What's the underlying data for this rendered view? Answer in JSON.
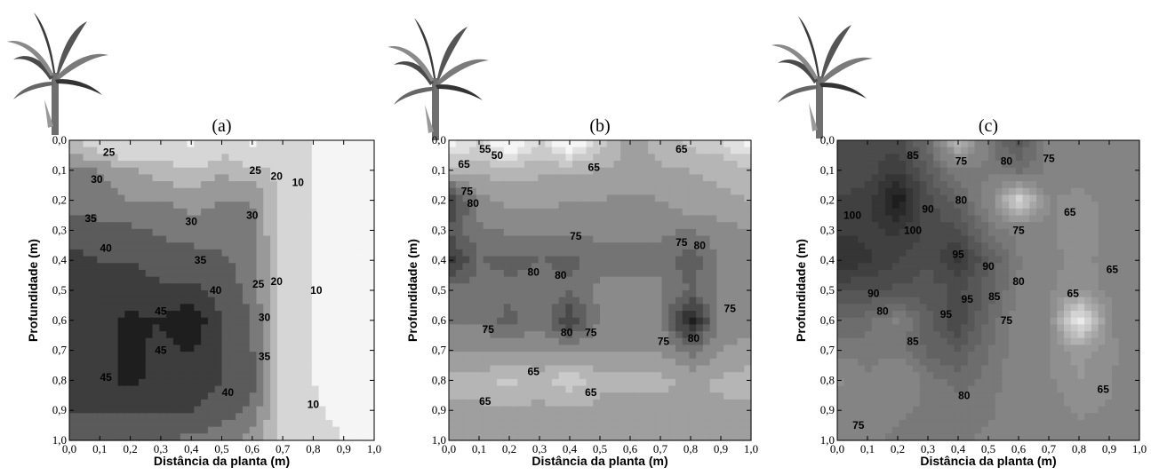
{
  "chart_data": [
    {
      "type": "contour",
      "panel_label": "(a)",
      "xlabel": "Distância da planta (m)",
      "ylabel": "Profundidade (m)",
      "x_ticks": [
        "0,0",
        "0,1",
        "0,2",
        "0,3",
        "0,4",
        "0,5",
        "0,6",
        "0,7",
        "0,8",
        "0,9",
        "1,0"
      ],
      "y_ticks": [
        "0,0",
        "0,1",
        "0,2",
        "0,3",
        "0,4",
        "0,5",
        "0,6",
        "0,7",
        "0,8",
        "0,9",
        "1,0"
      ],
      "xlim": [
        0,
        1.0
      ],
      "ylim": [
        1.0,
        0
      ],
      "grid": [
        [
          22,
          15,
          8,
          18,
          8,
          16,
          8,
          15,
          10,
          8,
          5
        ],
        [
          30,
          30,
          26,
          22,
          20,
          24,
          22,
          18,
          9,
          7,
          5
        ],
        [
          33,
          33,
          30,
          30,
          28,
          30,
          30,
          18,
          9,
          7,
          5
        ],
        [
          38,
          36,
          36,
          34,
          32,
          32,
          31,
          18,
          9,
          7,
          5
        ],
        [
          42,
          40,
          40,
          38,
          38,
          36,
          33,
          18,
          9,
          7,
          5
        ],
        [
          43,
          42,
          42,
          41,
          41,
          38,
          33,
          18,
          9,
          7,
          5
        ],
        [
          44,
          44,
          46,
          45,
          50,
          40,
          35,
          18,
          9,
          7,
          5
        ],
        [
          44,
          44,
          46,
          44,
          45,
          40,
          35,
          18,
          9,
          7,
          5
        ],
        [
          44,
          44,
          46,
          44,
          44,
          40,
          38,
          18,
          10,
          7,
          5
        ],
        [
          40,
          40,
          40,
          40,
          40,
          38,
          33,
          18,
          11,
          8,
          6
        ],
        [
          36,
          36,
          36,
          35,
          34,
          32,
          28,
          18,
          13,
          10,
          8
        ]
      ],
      "levels": [
        10,
        20,
        25,
        30,
        35,
        40,
        45
      ],
      "contour_labels": [
        {
          "text": "25",
          "x": 0.13,
          "y": 0.04
        },
        {
          "text": "30",
          "x": 0.09,
          "y": 0.13
        },
        {
          "text": "25",
          "x": 0.61,
          "y": 0.1
        },
        {
          "text": "20",
          "x": 0.68,
          "y": 0.12
        },
        {
          "text": "10",
          "x": 0.75,
          "y": 0.14
        },
        {
          "text": "30",
          "x": 0.6,
          "y": 0.25
        },
        {
          "text": "30",
          "x": 0.4,
          "y": 0.27
        },
        {
          "text": "35",
          "x": 0.07,
          "y": 0.26
        },
        {
          "text": "40",
          "x": 0.12,
          "y": 0.36
        },
        {
          "text": "35",
          "x": 0.43,
          "y": 0.4
        },
        {
          "text": "40",
          "x": 0.48,
          "y": 0.5
        },
        {
          "text": "25",
          "x": 0.62,
          "y": 0.48
        },
        {
          "text": "20",
          "x": 0.68,
          "y": 0.47
        },
        {
          "text": "10",
          "x": 0.81,
          "y": 0.5
        },
        {
          "text": "30",
          "x": 0.64,
          "y": 0.59
        },
        {
          "text": "45",
          "x": 0.3,
          "y": 0.57
        },
        {
          "text": "45",
          "x": 0.3,
          "y": 0.7
        },
        {
          "text": "35",
          "x": 0.64,
          "y": 0.72
        },
        {
          "text": "45",
          "x": 0.12,
          "y": 0.79
        },
        {
          "text": "40",
          "x": 0.52,
          "y": 0.84
        },
        {
          "text": "10",
          "x": 0.8,
          "y": 0.88
        }
      ]
    },
    {
      "type": "contour",
      "panel_label": "(b)",
      "xlabel": "Distância da planta (m)",
      "ylabel": "Profundidade (m)",
      "x_ticks": [
        "0,0",
        "0,1",
        "0,2",
        "0,3",
        "0,4",
        "0,5",
        "0,6",
        "0,7",
        "0,8",
        "0,9",
        "1,0"
      ],
      "y_ticks": [
        "0,0",
        "0,1",
        "0,2",
        "0,3",
        "0,4",
        "0,5",
        "0,6",
        "0,7",
        "0,8",
        "0,9",
        "1,0"
      ],
      "xlim": [
        0,
        1.0
      ],
      "ylim": [
        1.0,
        0
      ],
      "grid": [
        [
          45,
          55,
          40,
          55,
          40,
          58,
          68,
          62,
          58,
          55,
          45
        ],
        [
          62,
          64,
          62,
          64,
          64,
          65,
          66,
          66,
          65,
          64,
          62
        ],
        [
          92,
          72,
          68,
          68,
          70,
          70,
          71,
          70,
          66,
          66,
          65
        ],
        [
          84,
          76,
          74,
          74,
          74,
          74,
          74,
          74,
          75,
          72,
          70
        ],
        [
          92,
          80,
          82,
          80,
          82,
          76,
          76,
          76,
          84,
          74,
          72
        ],
        [
          78,
          77,
          78,
          77,
          79,
          74,
          74,
          74,
          80,
          74,
          72
        ],
        [
          76,
          76,
          82,
          76,
          90,
          74,
          74,
          74,
          98,
          74,
          72
        ],
        [
          70,
          70,
          72,
          70,
          72,
          70,
          70,
          70,
          78,
          70,
          68
        ],
        [
          64,
          63,
          58,
          63,
          56,
          64,
          64,
          64,
          66,
          64,
          62
        ],
        [
          66,
          66,
          66,
          66,
          66,
          66,
          66,
          66,
          66,
          66,
          66
        ],
        [
          68,
          68,
          68,
          68,
          68,
          68,
          68,
          68,
          68,
          68,
          68
        ]
      ],
      "levels": [
        50,
        55,
        60,
        65,
        70,
        75,
        80,
        85,
        90,
        95
      ],
      "contour_labels": [
        {
          "text": "65",
          "x": 0.05,
          "y": 0.08
        },
        {
          "text": "50",
          "x": 0.16,
          "y": 0.05
        },
        {
          "text": "55",
          "x": 0.12,
          "y": 0.03
        },
        {
          "text": "65",
          "x": 0.48,
          "y": 0.09
        },
        {
          "text": "65",
          "x": 0.77,
          "y": 0.03
        },
        {
          "text": "75",
          "x": 0.06,
          "y": 0.17
        },
        {
          "text": "80",
          "x": 0.08,
          "y": 0.21
        },
        {
          "text": "75",
          "x": 0.42,
          "y": 0.32
        },
        {
          "text": "75",
          "x": 0.77,
          "y": 0.34
        },
        {
          "text": "80",
          "x": 0.83,
          "y": 0.35
        },
        {
          "text": "80",
          "x": 0.28,
          "y": 0.44
        },
        {
          "text": "80",
          "x": 0.37,
          "y": 0.45
        },
        {
          "text": "75",
          "x": 0.93,
          "y": 0.56
        },
        {
          "text": "75",
          "x": 0.13,
          "y": 0.63
        },
        {
          "text": "80",
          "x": 0.39,
          "y": 0.64
        },
        {
          "text": "75",
          "x": 0.47,
          "y": 0.64
        },
        {
          "text": "75",
          "x": 0.71,
          "y": 0.67
        },
        {
          "text": "80",
          "x": 0.81,
          "y": 0.66
        },
        {
          "text": "65",
          "x": 0.28,
          "y": 0.77
        },
        {
          "text": "65",
          "x": 0.47,
          "y": 0.84
        },
        {
          "text": "65",
          "x": 0.12,
          "y": 0.87
        }
      ]
    },
    {
      "type": "contour",
      "panel_label": "(c)",
      "xlabel": "Distância da planta (m)",
      "ylabel": "Profundidade (m)",
      "x_ticks": [
        "0,0",
        "0,1",
        "0,2",
        "0,3",
        "0,4",
        "0,5",
        "0,6",
        "0,7",
        "0,8",
        "0,9",
        "1,0"
      ],
      "y_ticks": [
        "0,0",
        "0,1",
        "0,2",
        "0,3",
        "0,4",
        "0,5",
        "0,6",
        "0,7",
        "0,8",
        "0,9",
        "1,0"
      ],
      "xlim": [
        0,
        1.0
      ],
      "ylim": [
        1.0,
        0
      ],
      "grid": [
        [
          98,
          98,
          96,
          85,
          40,
          78,
          92,
          72,
          68,
          70,
          70
        ],
        [
          98,
          98,
          105,
          90,
          76,
          76,
          82,
          74,
          68,
          70,
          70
        ],
        [
          100,
          102,
          120,
          96,
          88,
          70,
          30,
          66,
          62,
          68,
          70
        ],
        [
          104,
          104,
          106,
          98,
          96,
          80,
          72,
          66,
          62,
          66,
          68
        ],
        [
          110,
          106,
          100,
          96,
          106,
          90,
          76,
          66,
          64,
          66,
          72
        ],
        [
          96,
          95,
          94,
          92,
          96,
          88,
          74,
          66,
          62,
          66,
          70
        ],
        [
          84,
          82,
          74,
          88,
          100,
          84,
          72,
          66,
          20,
          64,
          72
        ],
        [
          78,
          78,
          78,
          86,
          90,
          80,
          72,
          66,
          58,
          64,
          66
        ],
        [
          62,
          74,
          64,
          78,
          82,
          78,
          70,
          66,
          60,
          64,
          72
        ],
        [
          72,
          74,
          74,
          76,
          78,
          76,
          72,
          68,
          64,
          66,
          68
        ],
        [
          74,
          74,
          76,
          76,
          76,
          74,
          72,
          70,
          68,
          68,
          68
        ]
      ],
      "levels": [
        20,
        25,
        30,
        35,
        40,
        45,
        50,
        55,
        60,
        65,
        75,
        80,
        85,
        90,
        95,
        100,
        105,
        110,
        115
      ],
      "contour_labels": [
        {
          "text": "85",
          "x": 0.25,
          "y": 0.05
        },
        {
          "text": "75",
          "x": 0.41,
          "y": 0.07
        },
        {
          "text": "80",
          "x": 0.56,
          "y": 0.07
        },
        {
          "text": "75",
          "x": 0.7,
          "y": 0.06
        },
        {
          "text": "80",
          "x": 0.41,
          "y": 0.2
        },
        {
          "text": "90",
          "x": 0.3,
          "y": 0.23
        },
        {
          "text": "100",
          "x": 0.05,
          "y": 0.25
        },
        {
          "text": "65",
          "x": 0.77,
          "y": 0.24
        },
        {
          "text": "100",
          "x": 0.25,
          "y": 0.3
        },
        {
          "text": "75",
          "x": 0.6,
          "y": 0.3
        },
        {
          "text": "95",
          "x": 0.4,
          "y": 0.38
        },
        {
          "text": "90",
          "x": 0.5,
          "y": 0.42
        },
        {
          "text": "65",
          "x": 0.91,
          "y": 0.43
        },
        {
          "text": "80",
          "x": 0.6,
          "y": 0.47
        },
        {
          "text": "90",
          "x": 0.12,
          "y": 0.51
        },
        {
          "text": "95",
          "x": 0.43,
          "y": 0.53
        },
        {
          "text": "85",
          "x": 0.52,
          "y": 0.52
        },
        {
          "text": "65",
          "x": 0.78,
          "y": 0.51
        },
        {
          "text": "80",
          "x": 0.15,
          "y": 0.57
        },
        {
          "text": "95",
          "x": 0.36,
          "y": 0.58
        },
        {
          "text": "75",
          "x": 0.56,
          "y": 0.6
        },
        {
          "text": "85",
          "x": 0.25,
          "y": 0.67
        },
        {
          "text": "80",
          "x": 0.42,
          "y": 0.85
        },
        {
          "text": "65",
          "x": 0.88,
          "y": 0.83
        },
        {
          "text": "75",
          "x": 0.07,
          "y": 0.95
        }
      ]
    }
  ]
}
